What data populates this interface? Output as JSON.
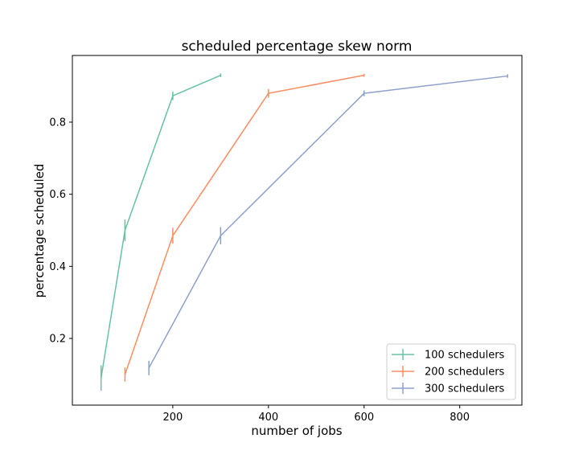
{
  "chart_data": {
    "type": "line",
    "title": "scheduled percentage skew norm",
    "xlabel": "number of jobs",
    "ylabel": "percentage scheduled",
    "xlim": [
      -10,
      930
    ],
    "ylim": [
      0.015,
      0.985
    ],
    "xticks": [
      200,
      400,
      600,
      800
    ],
    "yticks": [
      0.2,
      0.4,
      0.6,
      0.8
    ],
    "xtick_labels": [
      "200",
      "400",
      "600",
      "800"
    ],
    "ytick_labels": [
      "0.2",
      "0.4",
      "0.6",
      "0.8"
    ],
    "grid": false,
    "legend_position": "lower right",
    "series": [
      {
        "name": "100 schedulers",
        "color": "#66c2a5",
        "x": [
          50,
          100,
          200,
          300
        ],
        "y": [
          0.09,
          0.5,
          0.873,
          0.93
        ],
        "err": [
          0.035,
          0.03,
          0.012,
          0.005
        ]
      },
      {
        "name": "200 schedulers",
        "color": "#fc8d62",
        "x": [
          100,
          200,
          400,
          600
        ],
        "y": [
          0.1,
          0.485,
          0.88,
          0.93
        ],
        "err": [
          0.02,
          0.022,
          0.012,
          0.004
        ]
      },
      {
        "name": "300 schedulers",
        "color": "#8da0cb",
        "x": [
          150,
          300,
          600,
          900
        ],
        "y": [
          0.118,
          0.485,
          0.88,
          0.928
        ],
        "err": [
          0.02,
          0.024,
          0.008,
          0.005
        ]
      }
    ]
  }
}
